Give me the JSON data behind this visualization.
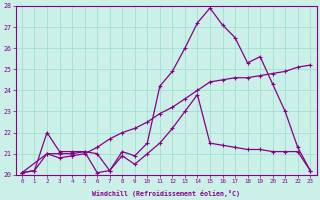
{
  "xlabel": "Windchill (Refroidissement éolien,°C)",
  "bg_color": "#caf0e8",
  "line_color": "#880088",
  "grid_color": "#99ddcc",
  "xlim": [
    -0.5,
    23.5
  ],
  "ylim": [
    20,
    28
  ],
  "xticks": [
    0,
    1,
    2,
    3,
    4,
    5,
    6,
    7,
    8,
    9,
    10,
    11,
    12,
    13,
    14,
    15,
    16,
    17,
    18,
    19,
    20,
    21,
    22,
    23
  ],
  "yticks": [
    20,
    21,
    22,
    23,
    24,
    25,
    26,
    27,
    28
  ],
  "line1_x": [
    0,
    1,
    2,
    3,
    4,
    5,
    6,
    7,
    8,
    9,
    10,
    11,
    12,
    13,
    14,
    15,
    16,
    17,
    18,
    19,
    20,
    21,
    22,
    23
  ],
  "line1_y": [
    20.1,
    20.2,
    22.0,
    21.1,
    21.1,
    21.1,
    21.0,
    20.2,
    21.1,
    20.9,
    21.5,
    24.2,
    24.9,
    26.0,
    27.2,
    27.9,
    27.1,
    26.5,
    25.3,
    25.6,
    24.3,
    23.0,
    21.3,
    20.2
  ],
  "line2_x": [
    0,
    2,
    3,
    4,
    5,
    6,
    7,
    8,
    9,
    10,
    11,
    12,
    13,
    14,
    15,
    16,
    17,
    18,
    19,
    20,
    21,
    22,
    23
  ],
  "line2_y": [
    20.1,
    21.0,
    20.8,
    20.9,
    21.0,
    21.3,
    21.7,
    22.0,
    22.2,
    22.5,
    22.9,
    23.2,
    23.6,
    24.0,
    24.4,
    24.5,
    24.6,
    24.6,
    24.7,
    24.8,
    24.9,
    25.1,
    25.2
  ],
  "line3_x": [
    0,
    1,
    2,
    3,
    4,
    5,
    6,
    7,
    8,
    9,
    10,
    11,
    12,
    13,
    14,
    15,
    16,
    17,
    18,
    19,
    20,
    21,
    22,
    23
  ],
  "line3_y": [
    20.1,
    20.2,
    21.0,
    21.0,
    21.0,
    21.1,
    20.1,
    20.2,
    20.9,
    20.5,
    21.0,
    21.5,
    22.2,
    23.0,
    23.8,
    21.5,
    21.4,
    21.3,
    21.2,
    21.2,
    21.1,
    21.1,
    21.1,
    20.2
  ]
}
